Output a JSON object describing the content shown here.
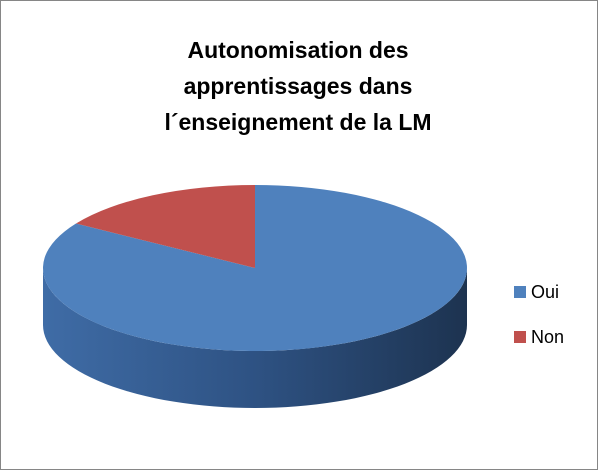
{
  "chart_data": {
    "type": "pie3d",
    "title": [
      "Autonomisation des",
      "apprentissages dans",
      "l´enseignement de la LM"
    ],
    "categories": [
      "Oui",
      "Non"
    ],
    "values": [
      84,
      16
    ],
    "colors": [
      "#4f81bd",
      "#c0504d"
    ],
    "legend": "right"
  }
}
